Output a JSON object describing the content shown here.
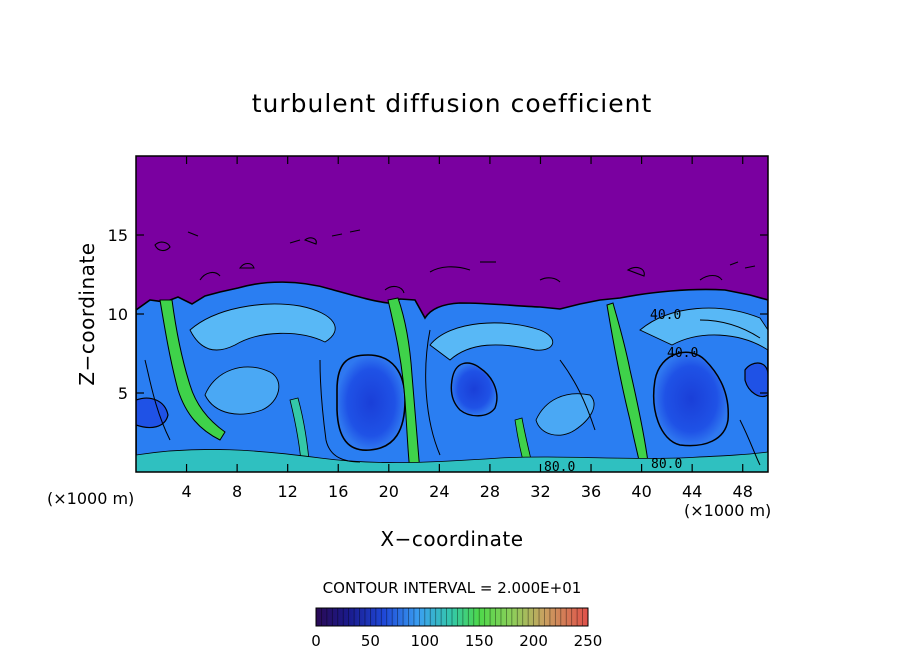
{
  "chart_data": {
    "type": "heatmap",
    "title": "turbulent diffusion coefficient",
    "xlabel": "X−coordinate",
    "ylabel": "Z−coordinate",
    "x_unit_left": "(×1000 m)",
    "x_unit_right": "(×1000 m)",
    "xlim": [
      0,
      50
    ],
    "ylim": [
      0,
      20
    ],
    "x_ticks": [
      4,
      8,
      12,
      16,
      20,
      24,
      28,
      32,
      36,
      40,
      44,
      48
    ],
    "y_ticks": [
      5,
      10,
      15
    ],
    "x_tick_labels": [
      "4",
      "8",
      "12",
      "16",
      "20",
      "24",
      "28",
      "32",
      "36",
      "40",
      "44",
      "48"
    ],
    "y_tick_labels": [
      "5",
      "10",
      "15"
    ],
    "contour_interval_text": "CONTOUR INTERVAL = 2.000E+01",
    "colorbar": {
      "min": 0,
      "max": 250,
      "tick_values": [
        0,
        50,
        100,
        150,
        200,
        250
      ],
      "tick_labels": [
        "0",
        "50",
        "100",
        "150",
        "200",
        "250"
      ]
    },
    "contour_labels": [
      {
        "text": "80.0",
        "x": 33.5,
        "z": 0.3
      },
      {
        "text": "80.0",
        "x": 41.5,
        "z": 0.5
      },
      {
        "text": "40.0",
        "x": 42.3,
        "z": 10.0
      },
      {
        "text": "40.0",
        "x": 43.0,
        "z": 7.6
      }
    ],
    "background_value": 0,
    "grid": false
  }
}
